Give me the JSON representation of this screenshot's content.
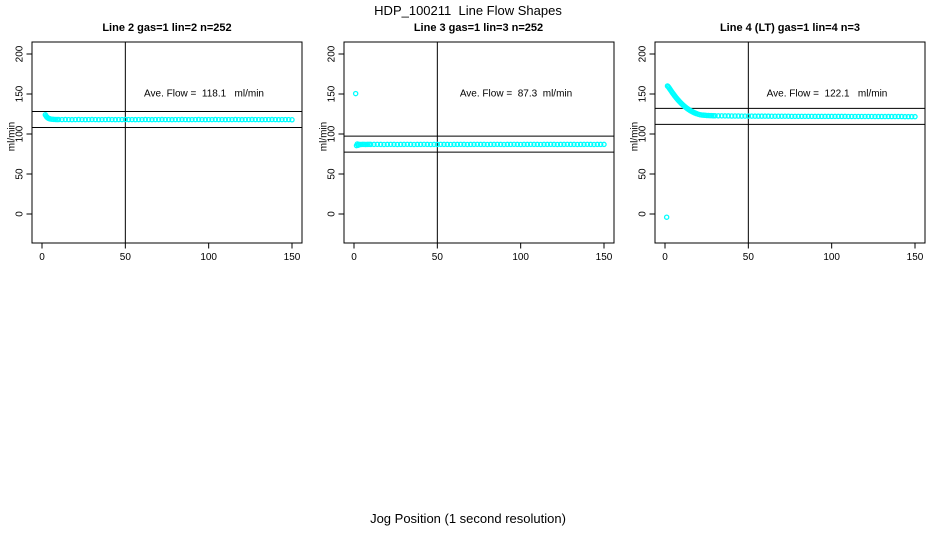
{
  "chart_data": {
    "type": "scatter",
    "title": "HDP_100211  Line Flow Shapes",
    "xlabel": "Jog Position (1 second resolution)",
    "ylabel": "ml/min",
    "point_color": "#00FFFF",
    "line_color": "#000000",
    "x_ticks": [
      0,
      50,
      100,
      150
    ],
    "y_ticks": [
      0,
      50,
      100,
      150,
      200
    ],
    "xlim": [
      -6,
      156
    ],
    "ylim": [
      -36,
      215
    ],
    "grid": "off",
    "legend": "none",
    "panels": [
      {
        "title": "Line 2 gas=1 lin=2 n=252",
        "annotation": "Ave. Flow =  118.1   ml/min",
        "ave_flow": 118.1,
        "n": 252,
        "gas": 1,
        "lin": 2,
        "vline_x": 50,
        "ref_lines": [
          128.1,
          108.1
        ],
        "points": [
          [
            2,
            124
          ],
          [
            2.5,
            122.3
          ],
          [
            3,
            121
          ],
          [
            3.5,
            120.1
          ],
          [
            4,
            119.5
          ],
          [
            4.5,
            119.1
          ],
          [
            5,
            118.8
          ],
          [
            6,
            118.5
          ],
          [
            7,
            118.3
          ],
          [
            8,
            118.2
          ],
          [
            9,
            118.1
          ],
          [
            10,
            118.1
          ],
          [
            12,
            118
          ],
          [
            14,
            118.1
          ],
          [
            16,
            118
          ],
          [
            18,
            117.9
          ],
          [
            20,
            118
          ],
          [
            22,
            118.1
          ],
          [
            24,
            118
          ],
          [
            26,
            117.9
          ],
          [
            28,
            118
          ],
          [
            30,
            118.1
          ],
          [
            32,
            118
          ],
          [
            34,
            117.9
          ],
          [
            36,
            118
          ],
          [
            38,
            118
          ],
          [
            40,
            118.1
          ],
          [
            42,
            118
          ],
          [
            44,
            117.9
          ],
          [
            46,
            118
          ],
          [
            48,
            118
          ],
          [
            50,
            118.1
          ],
          [
            52,
            118
          ],
          [
            54,
            118
          ],
          [
            56,
            117.9
          ],
          [
            58,
            118
          ],
          [
            60,
            118
          ],
          [
            62,
            118.1
          ],
          [
            64,
            118
          ],
          [
            66,
            117.9
          ],
          [
            68,
            118
          ],
          [
            70,
            118
          ],
          [
            72,
            118.1
          ],
          [
            74,
            118
          ],
          [
            76,
            118
          ],
          [
            78,
            117.9
          ],
          [
            80,
            118
          ],
          [
            82,
            118
          ],
          [
            84,
            118.1
          ],
          [
            86,
            118
          ],
          [
            88,
            117.9
          ],
          [
            90,
            118
          ],
          [
            92,
            118
          ],
          [
            94,
            118.1
          ],
          [
            96,
            118
          ],
          [
            98,
            117.9
          ],
          [
            100,
            118
          ],
          [
            102,
            118
          ],
          [
            104,
            118.1
          ],
          [
            106,
            118
          ],
          [
            108,
            118
          ],
          [
            110,
            117.9
          ],
          [
            112,
            118
          ],
          [
            114,
            118
          ],
          [
            116,
            118.1
          ],
          [
            118,
            118
          ],
          [
            120,
            117.9
          ],
          [
            122,
            118
          ],
          [
            124,
            118
          ],
          [
            126,
            118.1
          ],
          [
            128,
            118
          ],
          [
            130,
            118
          ],
          [
            132,
            117.9
          ],
          [
            134,
            118
          ],
          [
            136,
            118
          ],
          [
            138,
            118.1
          ],
          [
            140,
            118
          ],
          [
            142,
            117.9
          ],
          [
            144,
            118
          ],
          [
            146,
            118
          ],
          [
            148,
            118
          ],
          [
            150,
            117.8
          ]
        ]
      },
      {
        "title": "Line 3 gas=1 lin=3 n=252",
        "annotation": "Ave. Flow =  87.3  ml/min",
        "ave_flow": 87.3,
        "n": 252,
        "gas": 1,
        "lin": 3,
        "vline_x": 50,
        "ref_lines": [
          97.3,
          77.3
        ],
        "points": [
          [
            1,
            150.5
          ],
          [
            1.5,
            85.5
          ],
          [
            2,
            87.5
          ],
          [
            2.5,
            86
          ],
          [
            3,
            87
          ],
          [
            4,
            86.8
          ],
          [
            5,
            87.1
          ],
          [
            6,
            87
          ],
          [
            7,
            86.9
          ],
          [
            8,
            87
          ],
          [
            9,
            87.1
          ],
          [
            10,
            87
          ],
          [
            12,
            87
          ],
          [
            14,
            87.1
          ],
          [
            16,
            87
          ],
          [
            18,
            86.9
          ],
          [
            20,
            87
          ],
          [
            22,
            87.1
          ],
          [
            24,
            87
          ],
          [
            26,
            86.9
          ],
          [
            28,
            87
          ],
          [
            30,
            87
          ],
          [
            32,
            87.1
          ],
          [
            34,
            87
          ],
          [
            36,
            86.9
          ],
          [
            38,
            87
          ],
          [
            40,
            87
          ],
          [
            42,
            87.1
          ],
          [
            44,
            87
          ],
          [
            46,
            86.9
          ],
          [
            48,
            87
          ],
          [
            50,
            87
          ],
          [
            52,
            87.1
          ],
          [
            54,
            87
          ],
          [
            56,
            87
          ],
          [
            58,
            86.9
          ],
          [
            60,
            87
          ],
          [
            62,
            87
          ],
          [
            64,
            87.1
          ],
          [
            66,
            87
          ],
          [
            68,
            86.9
          ],
          [
            70,
            87
          ],
          [
            72,
            87
          ],
          [
            74,
            87.1
          ],
          [
            76,
            87
          ],
          [
            78,
            87
          ],
          [
            80,
            86.9
          ],
          [
            82,
            87
          ],
          [
            84,
            87
          ],
          [
            86,
            87.1
          ],
          [
            88,
            87
          ],
          [
            90,
            86.9
          ],
          [
            92,
            87
          ],
          [
            94,
            87
          ],
          [
            96,
            87.1
          ],
          [
            98,
            87
          ],
          [
            100,
            86.9
          ],
          [
            102,
            87
          ],
          [
            104,
            87
          ],
          [
            106,
            87.1
          ],
          [
            108,
            87
          ],
          [
            110,
            87
          ],
          [
            112,
            86.9
          ],
          [
            114,
            87
          ],
          [
            116,
            87
          ],
          [
            118,
            87.1
          ],
          [
            120,
            87
          ],
          [
            122,
            86.9
          ],
          [
            124,
            87
          ],
          [
            126,
            87
          ],
          [
            128,
            87.1
          ],
          [
            130,
            87
          ],
          [
            132,
            87
          ],
          [
            134,
            86.9
          ],
          [
            136,
            87
          ],
          [
            138,
            87
          ],
          [
            140,
            87.1
          ],
          [
            142,
            87
          ],
          [
            144,
            86.9
          ],
          [
            146,
            87
          ],
          [
            148,
            87
          ],
          [
            150,
            87
          ]
        ]
      },
      {
        "title": "Line 4 (LT) gas=1 lin=4 n=3",
        "annotation": "Ave. Flow =  122.1   ml/min",
        "ave_flow": 122.1,
        "n": 3,
        "gas": 1,
        "lin": 4,
        "vline_x": 50,
        "ref_lines": [
          132.1,
          112.1
        ],
        "points": [
          [
            1,
            -4
          ],
          [
            1.5,
            160
          ],
          [
            2,
            159
          ],
          [
            2.5,
            157.5
          ],
          [
            3,
            156
          ],
          [
            3.5,
            154.4
          ],
          [
            4,
            152.9
          ],
          [
            4.5,
            151.4
          ],
          [
            5,
            150
          ],
          [
            5.5,
            148.6
          ],
          [
            6,
            147.2
          ],
          [
            6.5,
            145.9
          ],
          [
            7,
            144.6
          ],
          [
            7.5,
            143.4
          ],
          [
            8,
            142.2
          ],
          [
            8.5,
            141
          ],
          [
            9,
            139.9
          ],
          [
            9.5,
            138.8
          ],
          [
            10,
            137.8
          ],
          [
            10.5,
            136.8
          ],
          [
            11,
            135.8
          ],
          [
            11.5,
            134.9
          ],
          [
            12,
            134
          ],
          [
            12.5,
            133.2
          ],
          [
            13,
            132.4
          ],
          [
            13.5,
            131.6
          ],
          [
            14,
            130.9
          ],
          [
            14.5,
            130.2
          ],
          [
            15,
            129.5
          ],
          [
            15.5,
            128.9
          ],
          [
            16,
            128.3
          ],
          [
            16.5,
            127.8
          ],
          [
            17,
            127.2
          ],
          [
            17.5,
            126.7
          ],
          [
            18,
            126.3
          ],
          [
            18.5,
            125.8
          ],
          [
            19,
            125.4
          ],
          [
            20,
            124.7
          ],
          [
            21,
            124.1
          ],
          [
            22,
            123.8
          ],
          [
            23,
            123.6
          ],
          [
            24,
            123.4
          ],
          [
            25,
            123.2
          ],
          [
            26,
            123.1
          ],
          [
            27,
            123
          ],
          [
            28,
            122.9
          ],
          [
            29,
            122.8
          ],
          [
            30,
            122.8
          ],
          [
            32,
            122.7
          ],
          [
            34,
            122.7
          ],
          [
            36,
            122.6
          ],
          [
            38,
            122.6
          ],
          [
            40,
            122.5
          ],
          [
            42,
            122.5
          ],
          [
            44,
            122.5
          ],
          [
            46,
            122.4
          ],
          [
            48,
            122.4
          ],
          [
            50,
            122.4
          ],
          [
            52,
            122.4
          ],
          [
            54,
            122.3
          ],
          [
            56,
            122.3
          ],
          [
            58,
            122.3
          ],
          [
            60,
            122.3
          ],
          [
            62,
            122.3
          ],
          [
            64,
            122.2
          ],
          [
            66,
            122.2
          ],
          [
            68,
            122.2
          ],
          [
            70,
            122.2
          ],
          [
            72,
            122.2
          ],
          [
            74,
            122.2
          ],
          [
            76,
            122.1
          ],
          [
            78,
            122.1
          ],
          [
            80,
            122.1
          ],
          [
            82,
            122.1
          ],
          [
            84,
            122.1
          ],
          [
            86,
            122.1
          ],
          [
            88,
            122.1
          ],
          [
            90,
            122
          ],
          [
            92,
            122
          ],
          [
            94,
            122
          ],
          [
            96,
            122
          ],
          [
            98,
            122
          ],
          [
            100,
            122
          ],
          [
            102,
            122
          ],
          [
            104,
            122
          ],
          [
            106,
            122
          ],
          [
            108,
            122
          ],
          [
            110,
            121.9
          ],
          [
            112,
            121.9
          ],
          [
            114,
            121.9
          ],
          [
            116,
            121.9
          ],
          [
            118,
            121.9
          ],
          [
            120,
            121.9
          ],
          [
            122,
            121.9
          ],
          [
            124,
            121.9
          ],
          [
            126,
            121.8
          ],
          [
            128,
            121.8
          ],
          [
            130,
            121.8
          ],
          [
            132,
            121.8
          ],
          [
            134,
            121.8
          ],
          [
            136,
            121.8
          ],
          [
            138,
            121.8
          ],
          [
            140,
            121.8
          ],
          [
            142,
            121.8
          ],
          [
            144,
            121.7
          ],
          [
            146,
            121.7
          ],
          [
            148,
            121.7
          ],
          [
            150,
            121.7
          ]
        ]
      }
    ]
  }
}
